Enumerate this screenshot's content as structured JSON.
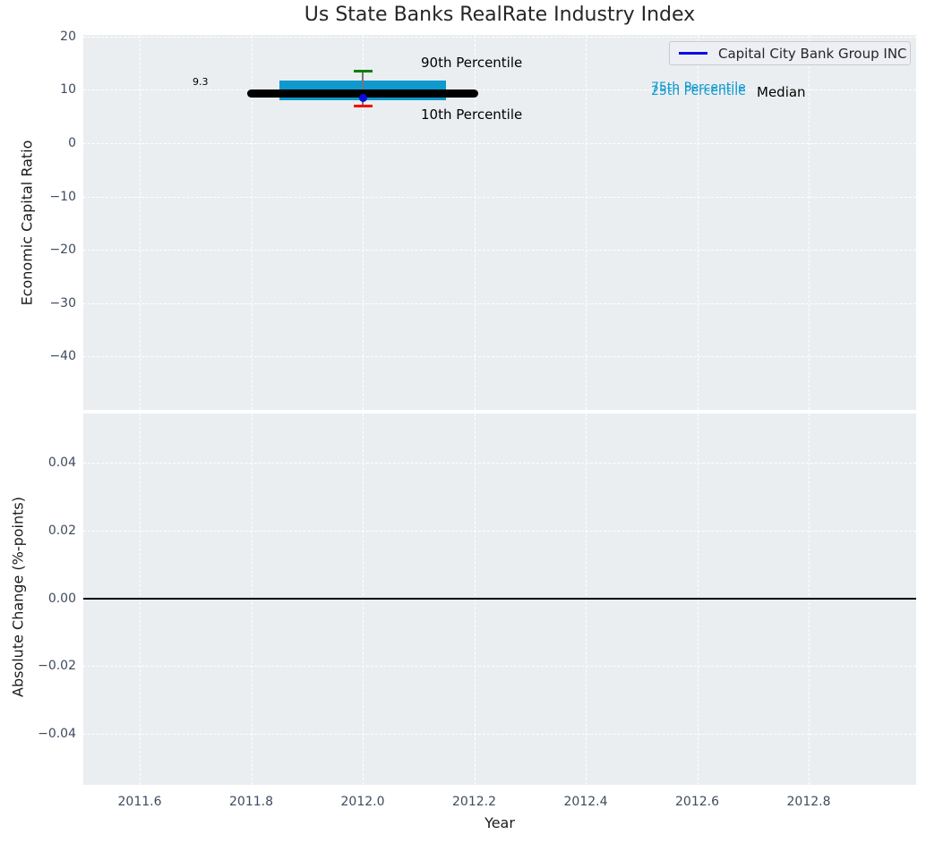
{
  "figure": {
    "title": "Us State Banks RealRate Industry Index"
  },
  "legend": {
    "label": "Capital City Bank Group INC"
  },
  "top_axes": {
    "ylabel": "Economic Capital Ratio",
    "yticks": [
      "20",
      "10",
      "0",
      "−10",
      "−20",
      "−30",
      "−40"
    ],
    "ytick_values": [
      20,
      10,
      0,
      -10,
      -20,
      -30,
      -40
    ],
    "annotations": {
      "median_value": "9.3",
      "p90": "90th Percentile",
      "p10": "10th Percentile",
      "p75": "75th Percentile",
      "p25": "25th Percentile",
      "median": "Median"
    }
  },
  "bottom_axes": {
    "ylabel": "Absolute Change (%-points)",
    "yticks": [
      "0.04",
      "0.02",
      "0.00",
      "−0.02",
      "−0.04"
    ],
    "ytick_values": [
      0.04,
      0.02,
      0,
      -0.02,
      -0.04
    ]
  },
  "xaxis": {
    "label": "Year",
    "ticks": [
      "2011.6",
      "2011.8",
      "2012.0",
      "2012.2",
      "2012.4",
      "2012.6",
      "2012.8"
    ],
    "tick_values": [
      2011.6,
      2011.8,
      2012.0,
      2012.2,
      2012.4,
      2012.6,
      2012.8
    ]
  },
  "colors": {
    "company_line": "#0b0be0",
    "median_line": "#000000",
    "band": "#1099cf",
    "p90_cap": "#008000",
    "p10_cap": "#f40000",
    "whisker_stem": "#777777",
    "axes_background": "#ebeef0",
    "grid": "#ffffff",
    "tick_label": "#3e4b5e",
    "text": "#262626"
  },
  "chart_data": [
    {
      "type": "line",
      "title": "Us State Banks RealRate Industry Index",
      "xlabel": "Year",
      "ylabel": "Economic Capital Ratio",
      "xlim": [
        2011.5,
        2013.0
      ],
      "ylim": [
        -50,
        20.4
      ],
      "grid": true,
      "legend_position": "upper right",
      "legend": [
        "Capital City Bank Group INC"
      ],
      "series": [
        {
          "name": "Capital City Bank Group INC",
          "type": "scatter",
          "x": [
            2012.0
          ],
          "y": [
            8.4
          ],
          "color": "#0b0be0"
        },
        {
          "name": "Median",
          "type": "line",
          "x": [
            2011.8,
            2012.2
          ],
          "y": [
            9.3,
            9.3
          ],
          "color": "#000000",
          "linewidth": 9
        },
        {
          "name": "25th-75th Percentile band",
          "type": "band",
          "x": [
            2011.85,
            2012.15
          ],
          "y_low": 8.1,
          "y_high": 11.7,
          "color": "#1099cf"
        },
        {
          "name": "90th Percentile",
          "type": "whisker-cap",
          "x": 2012.0,
          "y": 13.5,
          "color": "#008000"
        },
        {
          "name": "10th Percentile",
          "type": "whisker-cap",
          "x": 2012.0,
          "y": 7.0,
          "color": "#f40000"
        }
      ],
      "annotations": [
        "9.3",
        "90th Percentile",
        "10th Percentile",
        "75th Percentile",
        "25th Percentile",
        "Median"
      ]
    },
    {
      "type": "line",
      "xlabel": "Year",
      "ylabel": "Absolute Change (%-points)",
      "xlim": [
        2011.5,
        2013.0
      ],
      "ylim": [
        -0.055,
        0.055
      ],
      "grid": true,
      "reference_line": 0.0,
      "series": []
    }
  ]
}
